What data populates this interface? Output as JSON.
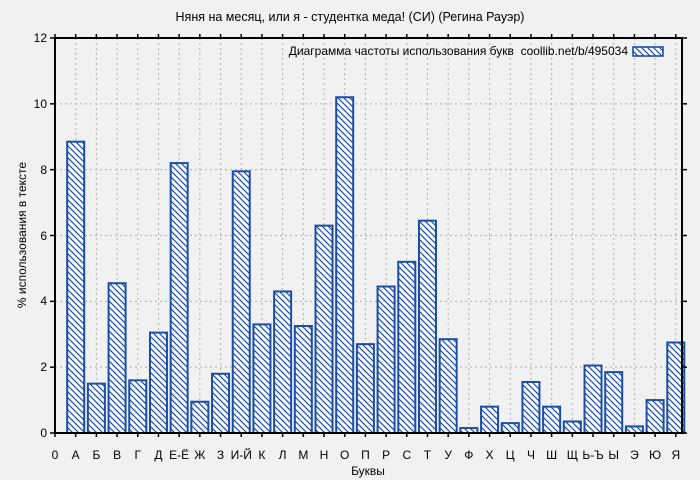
{
  "chart_data": {
    "type": "bar",
    "title": "Няня на месяц, или я - студентка меда! (СИ) (Регина Рауэр)",
    "legend_label": "Диаграмма частоты использования букв  coollib.net/b/495034",
    "legend_position": "top-right inside plot",
    "xlabel": "Буквы",
    "ylabel": "% использования в тексте",
    "origin_label": "0",
    "categories": [
      "А",
      "Б",
      "В",
      "Г",
      "Д",
      "Е-Ё",
      "Ж",
      "З",
      "И-Й",
      "К",
      "Л",
      "М",
      "Н",
      "О",
      "П",
      "Р",
      "С",
      "Т",
      "У",
      "Ф",
      "Х",
      "Ц",
      "Ч",
      "Ш",
      "Щ",
      "Ь-Ъ",
      "Ы",
      "Э",
      "Ю",
      "Я"
    ],
    "values": [
      8.85,
      1.5,
      4.55,
      1.6,
      3.05,
      8.2,
      0.95,
      1.8,
      7.95,
      3.3,
      4.3,
      3.25,
      6.3,
      10.2,
      2.7,
      4.45,
      5.2,
      6.45,
      2.85,
      0.15,
      0.8,
      0.3,
      1.55,
      0.8,
      0.35,
      2.05,
      1.85,
      0.2,
      1.0,
      2.75
    ],
    "ylim": [
      0,
      12
    ],
    "yticks": [
      0,
      2,
      4,
      6,
      8,
      10,
      12
    ],
    "grid": true,
    "bar_style": "white fill with blue diagonal hatching and blue outline"
  },
  "colors": {
    "bar_outline": "#1b4da6",
    "bar_fill": "#ffffff",
    "grid": "#b0b0b0",
    "frame": "#000000",
    "background": "#f1f1f1",
    "text": "#000000"
  }
}
